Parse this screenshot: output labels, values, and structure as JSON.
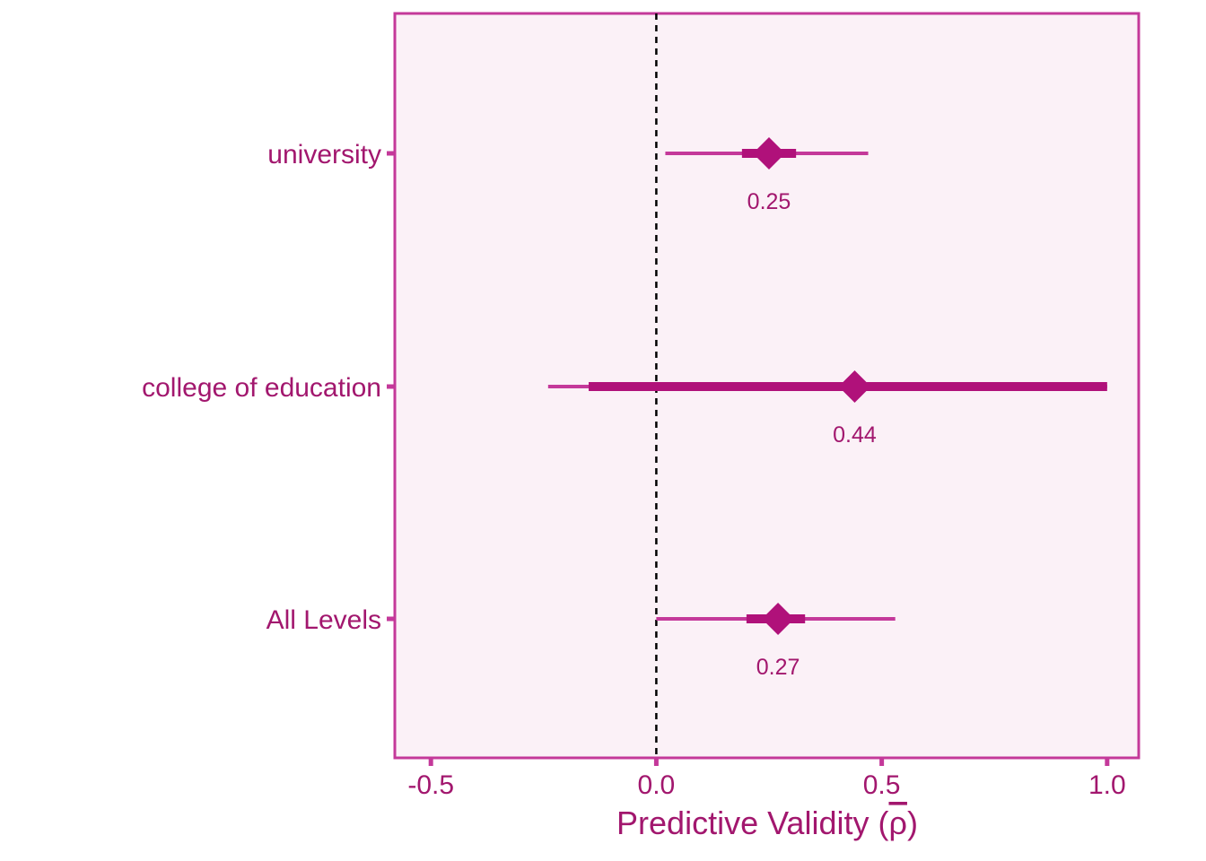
{
  "colors": {
    "panel_border": "#c4399a",
    "panel_fill": "#fbf1f7",
    "text": "#a2176e",
    "ci_outer": "#c4399a",
    "ci_inner": "#b0117a",
    "point": "#b0117a",
    "reference_line": "#000000"
  },
  "chart_data": {
    "type": "forest",
    "xlabel_main": "Predictive Validity (",
    "xlabel_symbol": "ρ",
    "xlabel_close": ")",
    "xlim": [
      -0.58,
      1.07
    ],
    "xticks": [
      -0.5,
      0.0,
      0.5,
      1.0
    ],
    "xtick_labels": [
      "-0.5",
      "0.0",
      "0.5",
      "1.0"
    ],
    "reference_line_x": 0,
    "categories": [
      "university",
      "college of education",
      "All Levels"
    ],
    "rows": [
      {
        "label": "university",
        "estimate": 0.25,
        "estimate_label": "0.25",
        "ci_outer": [
          0.02,
          0.47
        ],
        "ci_inner": [
          0.19,
          0.31
        ]
      },
      {
        "label": "college of education",
        "estimate": 0.44,
        "estimate_label": "0.44",
        "ci_outer": [
          -0.24,
          1.0
        ],
        "ci_inner": [
          -0.15,
          1.0
        ]
      },
      {
        "label": "All Levels",
        "estimate": 0.27,
        "estimate_label": "0.27",
        "ci_outer": [
          0.0,
          0.53
        ],
        "ci_inner": [
          0.2,
          0.33
        ]
      }
    ],
    "grid": false,
    "legend": "none"
  }
}
